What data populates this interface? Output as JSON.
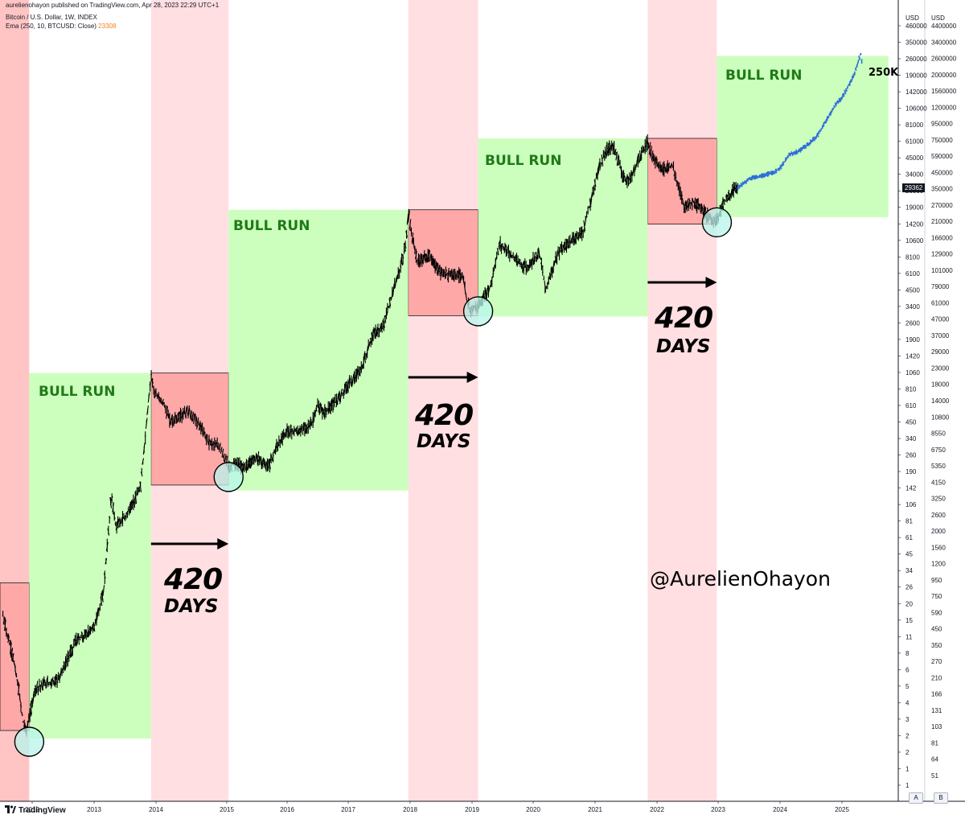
{
  "header": {
    "line1": "aurelienohayon published on TradingView.com, Apr 28, 2023 22:29 UTC+1",
    "line2": "Bitcoin / U.S. Dollar, 1W, INDEX",
    "line3_prefix": "Ema (250, 10, BTCUSD: Close)",
    "line3_value": "23308"
  },
  "axis": {
    "unit_a": "USD",
    "unit_b": "USD",
    "current_price_tag": "29362",
    "scale_a_button": "A",
    "scale_b_button": "B"
  },
  "footer": {
    "logo_text": "TradingView"
  },
  "annotations": {
    "bull_run": [
      "BULL RUN",
      "BULL RUN",
      "BULL RUN",
      "BULL RUN"
    ],
    "num_420": [
      "420",
      "420",
      "420"
    ],
    "days": [
      "DAYS",
      "DAYS",
      "DAYS"
    ],
    "target": "250K",
    "handle": "@AurelienOhayon"
  },
  "colors": {
    "bear_band": "#ffdfe2",
    "bear_box": "#ffa8a8",
    "bull_box": "#ccffbd",
    "bull_text": "#1f7a18",
    "candles": "#000000",
    "projection": "#2e6fd8",
    "circle_fill": "#b8f5ec"
  },
  "chart_data": {
    "type": "line",
    "title": "Bitcoin / U.S. Dollar, 1W, INDEX",
    "xlabel": "",
    "ylabel": "USD",
    "scale": "log",
    "x_ticks": [
      "2012",
      "2013",
      "2014",
      "2015",
      "2016",
      "2017",
      "2018",
      "2019",
      "2020",
      "2021",
      "2022",
      "2023",
      "2024",
      "2025"
    ],
    "y_ticks_a": [
      "460000",
      "350000",
      "260000",
      "190000",
      "142000",
      "106000",
      "81000",
      "61000",
      "45000",
      "34000",
      "26000",
      "19000",
      "14200",
      "10600",
      "8100",
      "6100",
      "4500",
      "3400",
      "2600",
      "1900",
      "1420",
      "1060",
      "810",
      "610",
      "450",
      "340",
      "260",
      "190",
      "142",
      "106",
      "81",
      "61",
      "45",
      "34",
      "26",
      "20",
      "15",
      "11",
      "8",
      "6",
      "5",
      "4",
      "3",
      "2",
      "2",
      "1",
      "1"
    ],
    "y_ticks_b": [
      "4400000",
      "3400000",
      "2600000",
      "2000000",
      "1560000",
      "1200000",
      "950000",
      "750000",
      "590000",
      "450000",
      "350000",
      "270000",
      "210000",
      "166000",
      "129000",
      "101000",
      "79000",
      "61000",
      "47000",
      "37000",
      "29000",
      "23000",
      "18000",
      "14000",
      "10800",
      "8550",
      "6750",
      "5350",
      "4150",
      "3250",
      "2600",
      "2000",
      "1560",
      "1200",
      "950",
      "750",
      "590",
      "450",
      "350",
      "270",
      "210",
      "166",
      "131",
      "103",
      "81",
      "64",
      "51"
    ],
    "series": [
      {
        "values": [
          [
            2011.5,
            17
          ],
          [
            2011.58,
            12
          ],
          [
            2011.68,
            8
          ],
          [
            2011.76,
            5
          ],
          [
            2011.85,
            2.6
          ],
          [
            2011.9,
            2.3
          ],
          [
            2011.96,
            3
          ],
          [
            2012.05,
            4.8
          ],
          [
            2012.2,
            5.2
          ],
          [
            2012.4,
            5.5
          ],
          [
            2012.55,
            7.5
          ],
          [
            2012.7,
            11
          ],
          [
            2012.85,
            12
          ],
          [
            2013.0,
            14
          ],
          [
            2013.15,
            25
          ],
          [
            2013.28,
            140
          ],
          [
            2013.35,
            80
          ],
          [
            2013.5,
            95
          ],
          [
            2013.65,
            125
          ],
          [
            2013.75,
            160
          ],
          [
            2013.84,
            450
          ],
          [
            2013.92,
            1150
          ],
          [
            2013.98,
            800
          ],
          [
            2014.1,
            700
          ],
          [
            2014.2,
            500
          ],
          [
            2014.35,
            550
          ],
          [
            2014.45,
            600
          ],
          [
            2014.6,
            480
          ],
          [
            2014.75,
            350
          ],
          [
            2014.9,
            320
          ],
          [
            2015.0,
            250
          ],
          [
            2015.05,
            210
          ],
          [
            2015.1,
            240
          ],
          [
            2015.3,
            225
          ],
          [
            2015.5,
            270
          ],
          [
            2015.6,
            240
          ],
          [
            2015.7,
            230
          ],
          [
            2015.83,
            330
          ],
          [
            2016.0,
            420
          ],
          [
            2016.2,
            420
          ],
          [
            2016.4,
            480
          ],
          [
            2016.5,
            650
          ],
          [
            2016.6,
            580
          ],
          [
            2016.8,
            700
          ],
          [
            2017.0,
            950
          ],
          [
            2017.2,
            1200
          ],
          [
            2017.4,
            2300
          ],
          [
            2017.55,
            2500
          ],
          [
            2017.7,
            4400
          ],
          [
            2017.85,
            7500
          ],
          [
            2017.93,
            11000
          ],
          [
            2017.97,
            19000
          ],
          [
            2018.02,
            13500
          ],
          [
            2018.12,
            8000
          ],
          [
            2018.3,
            9000
          ],
          [
            2018.5,
            6500
          ],
          [
            2018.7,
            6500
          ],
          [
            2018.85,
            6300
          ],
          [
            2018.92,
            4000
          ],
          [
            2018.97,
            3500
          ],
          [
            2019.1,
            3700
          ],
          [
            2019.3,
            5200
          ],
          [
            2019.45,
            11000
          ],
          [
            2019.55,
            10000
          ],
          [
            2019.75,
            8000
          ],
          [
            2019.9,
            7200
          ],
          [
            2020.1,
            9500
          ],
          [
            2020.2,
            5000
          ],
          [
            2020.4,
            9300
          ],
          [
            2020.6,
            11500
          ],
          [
            2020.8,
            13500
          ],
          [
            2020.95,
            25000
          ],
          [
            2021.05,
            40000
          ],
          [
            2021.2,
            58000
          ],
          [
            2021.3,
            60000
          ],
          [
            2021.45,
            35000
          ],
          [
            2021.55,
            33000
          ],
          [
            2021.7,
            48000
          ],
          [
            2021.85,
            65000
          ],
          [
            2021.95,
            47000
          ],
          [
            2022.1,
            40000
          ],
          [
            2022.25,
            43000
          ],
          [
            2022.45,
            21000
          ],
          [
            2022.6,
            23000
          ],
          [
            2022.75,
            19500
          ],
          [
            2022.9,
            16500
          ],
          [
            2022.98,
            16700
          ],
          [
            2023.1,
            23000
          ],
          [
            2023.25,
            28000
          ],
          [
            2023.32,
            29362
          ]
        ]
      },
      {
        "values": [
          [
            2023.32,
            29362
          ],
          [
            2023.5,
            34000
          ],
          [
            2023.7,
            36000
          ],
          [
            2023.9,
            38000
          ],
          [
            2024.0,
            41000
          ],
          [
            2024.15,
            52000
          ],
          [
            2024.3,
            55000
          ],
          [
            2024.45,
            62000
          ],
          [
            2024.6,
            72000
          ],
          [
            2024.75,
            95000
          ],
          [
            2024.9,
            125000
          ],
          [
            2025.0,
            140000
          ],
          [
            2025.1,
            170000
          ],
          [
            2025.2,
            210000
          ],
          [
            2025.3,
            300000
          ],
          [
            2025.33,
            250000
          ]
        ]
      }
    ],
    "bear_periods": [
      [
        2011.45,
        2011.95
      ],
      [
        2013.92,
        2015.03
      ],
      [
        2017.97,
        2019.1
      ],
      [
        2021.85,
        2022.98
      ]
    ],
    "bull_periods": [
      [
        2011.95,
        2013.92
      ],
      [
        2015.03,
        2017.97
      ],
      [
        2019.1,
        2021.85
      ],
      [
        2022.98,
        2025.75
      ]
    ],
    "bottoms": [
      [
        2011.95,
        2
      ],
      [
        2015.03,
        190
      ],
      [
        2019.1,
        3400
      ],
      [
        2022.98,
        16000
      ]
    ],
    "arrows": [
      [
        2013.92,
        2015.03
      ],
      [
        2017.97,
        2019.1
      ],
      [
        2021.85,
        2022.98
      ]
    ]
  }
}
